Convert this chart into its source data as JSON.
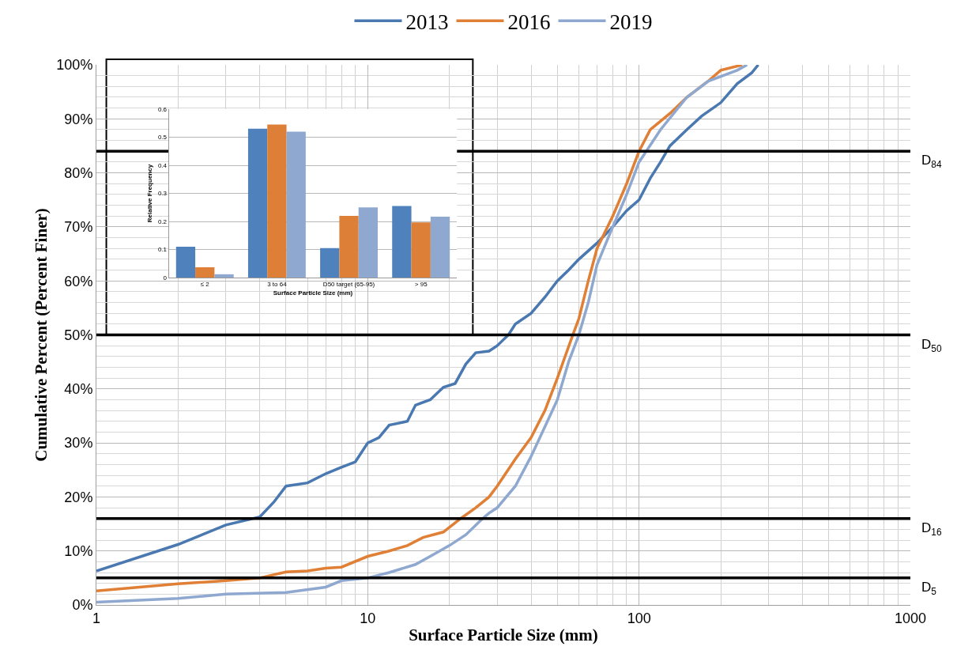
{
  "chart_data": [
    {
      "type": "line",
      "xlabel": "Surface Particle Size (mm)",
      "ylabel": "Cumulative Percent (Percent Finer)",
      "log": "x",
      "xlim": [
        1,
        1000
      ],
      "xticks": [
        1,
        10,
        100,
        1000
      ],
      "ylim": [
        0,
        100
      ],
      "yticks": [
        {
          "value": 0,
          "label": "0%"
        },
        {
          "value": 10,
          "label": "10%"
        },
        {
          "value": 20,
          "label": "20%"
        },
        {
          "value": 30,
          "label": "30%"
        },
        {
          "value": 40,
          "label": "40%"
        },
        {
          "value": 50,
          "label": "50%"
        },
        {
          "value": 60,
          "label": "60%"
        },
        {
          "value": 70,
          "label": "70%"
        },
        {
          "value": 80,
          "label": "80%"
        },
        {
          "value": 90,
          "label": "90%"
        },
        {
          "value": 100,
          "label": "100%"
        }
      ],
      "grid": true,
      "legend": "top",
      "line_style": "solid",
      "series": [
        {
          "name": "2013",
          "color": "#4a78b0",
          "x": [
            1,
            2,
            3,
            4,
            4.5,
            5,
            6,
            7,
            8,
            9,
            10,
            11,
            12,
            14,
            15,
            17,
            19,
            21,
            23,
            25,
            28,
            30,
            33,
            35,
            40,
            45,
            50,
            55,
            60,
            70,
            80,
            90,
            100,
            110,
            120,
            130,
            150,
            170,
            200,
            230,
            260,
            275
          ],
          "values": [
            6.3,
            11.2,
            14.8,
            16.3,
            19,
            22,
            22.6,
            24.3,
            25.5,
            26.5,
            30,
            31,
            33.3,
            34,
            37,
            38,
            40.3,
            41,
            44.6,
            46.7,
            47,
            48,
            50,
            52,
            54,
            57,
            60,
            62,
            64,
            67,
            70,
            73,
            75,
            79,
            82,
            85,
            88,
            90.5,
            93,
            96.5,
            98.5,
            100
          ]
        },
        {
          "name": "2016",
          "color": "#e07f36",
          "x": [
            1,
            2,
            3,
            4,
            5,
            6,
            7,
            8,
            10,
            12,
            14,
            16,
            19,
            22,
            25,
            28,
            30,
            35,
            40,
            45,
            50,
            57,
            60,
            65,
            70,
            80,
            90,
            100,
            110,
            130,
            150,
            180,
            200,
            240
          ],
          "values": [
            2.6,
            3.9,
            4.5,
            5,
            6.1,
            6.3,
            6.8,
            7,
            9,
            10,
            11,
            12.5,
            13.5,
            16,
            18,
            20,
            22,
            27,
            31,
            36,
            42,
            50,
            53,
            60,
            66,
            72,
            78,
            84,
            88,
            91,
            94,
            97,
            99,
            100
          ]
        },
        {
          "name": "2019",
          "color": "#8fa8cf",
          "x": [
            1,
            2,
            3,
            5,
            7,
            8,
            10,
            12,
            15,
            17,
            20,
            23,
            26.5,
            28,
            30,
            35,
            40,
            45,
            50,
            55,
            60,
            65,
            70,
            80,
            90,
            100,
            120,
            150,
            180,
            230,
            250
          ],
          "values": [
            0.5,
            1.2,
            2,
            2.3,
            3.3,
            4.5,
            5,
            6,
            7.5,
            9,
            11,
            13,
            16,
            17,
            18,
            22,
            27.5,
            33,
            38,
            45,
            50,
            56,
            63,
            70,
            76,
            82,
            88,
            94,
            97,
            99,
            100
          ]
        }
      ],
      "ref_lines": [
        {
          "axis": "y",
          "value": 84,
          "label": "D$_{84}$",
          "color": "#000000"
        },
        {
          "axis": "y",
          "value": 50,
          "label": "D$_{50}$",
          "color": "#000000"
        },
        {
          "axis": "y",
          "value": 16,
          "label": "D$_{16}$",
          "color": "#000000"
        },
        {
          "axis": "y",
          "value": 5,
          "label": "D$_{5}$",
          "color": "#000000"
        }
      ]
    },
    {
      "type": "bar",
      "xlabel": "Surface Particle Size (mm)",
      "ylabel": "Relative Frequency",
      "categories": [
        "≤ 2",
        "3 to 64",
        "D50 target (65-95)",
        "> 95"
      ],
      "ylim": [
        0,
        0.6
      ],
      "yticks": [
        0,
        0.1,
        0.2,
        0.3,
        0.4,
        0.5,
        0.6
      ],
      "grid": "y",
      "legend": false,
      "series": [
        {
          "color": "#4f81bd",
          "values": [
            0.11,
            0.53,
            0.105,
            0.255
          ]
        },
        {
          "color": "#dd7f37",
          "values": [
            0.037,
            0.545,
            0.22,
            0.197
          ]
        },
        {
          "color": "#8fa8cf",
          "values": [
            0.012,
            0.52,
            0.25,
            0.217
          ]
        }
      ]
    }
  ]
}
